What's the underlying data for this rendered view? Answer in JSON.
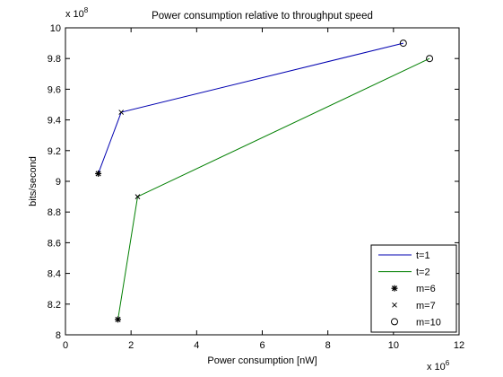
{
  "chart_data": {
    "type": "line",
    "title": "Power consumption relative to throughput speed",
    "xlabel": "Power consumption [nW]",
    "ylabel": "bits/second",
    "x_multiplier": "x 10",
    "x_exponent": "6",
    "y_multiplier": "x 10",
    "y_exponent": "8",
    "xlim": [
      0,
      12
    ],
    "ylim": [
      8,
      10
    ],
    "xticks": [
      "0",
      "2",
      "4",
      "6",
      "8",
      "10",
      "12"
    ],
    "yticks": [
      "8",
      "8.2",
      "8.4",
      "8.6",
      "8.8",
      "9",
      "9.2",
      "9.4",
      "9.6",
      "9.8",
      "10"
    ],
    "grid": false,
    "legend_position": "bottom-right",
    "series": [
      {
        "name": "t=1",
        "color": "#0000b0",
        "x": [
          1.0,
          1.7,
          10.3
        ],
        "y": [
          9.05,
          9.45,
          9.9
        ]
      },
      {
        "name": "t=2",
        "color": "#007f00",
        "x": [
          1.6,
          2.2,
          11.1
        ],
        "y": [
          8.1,
          8.9,
          9.8
        ]
      }
    ],
    "marker_groups": [
      {
        "name": "m=6",
        "marker": "star",
        "points": [
          [
            1.0,
            9.05
          ],
          [
            1.6,
            8.1
          ]
        ]
      },
      {
        "name": "m=7",
        "marker": "x",
        "points": [
          [
            1.7,
            9.45
          ],
          [
            2.2,
            8.9
          ]
        ]
      },
      {
        "name": "m=10",
        "marker": "circle",
        "points": [
          [
            10.3,
            9.9
          ],
          [
            11.1,
            9.8
          ]
        ]
      }
    ]
  }
}
